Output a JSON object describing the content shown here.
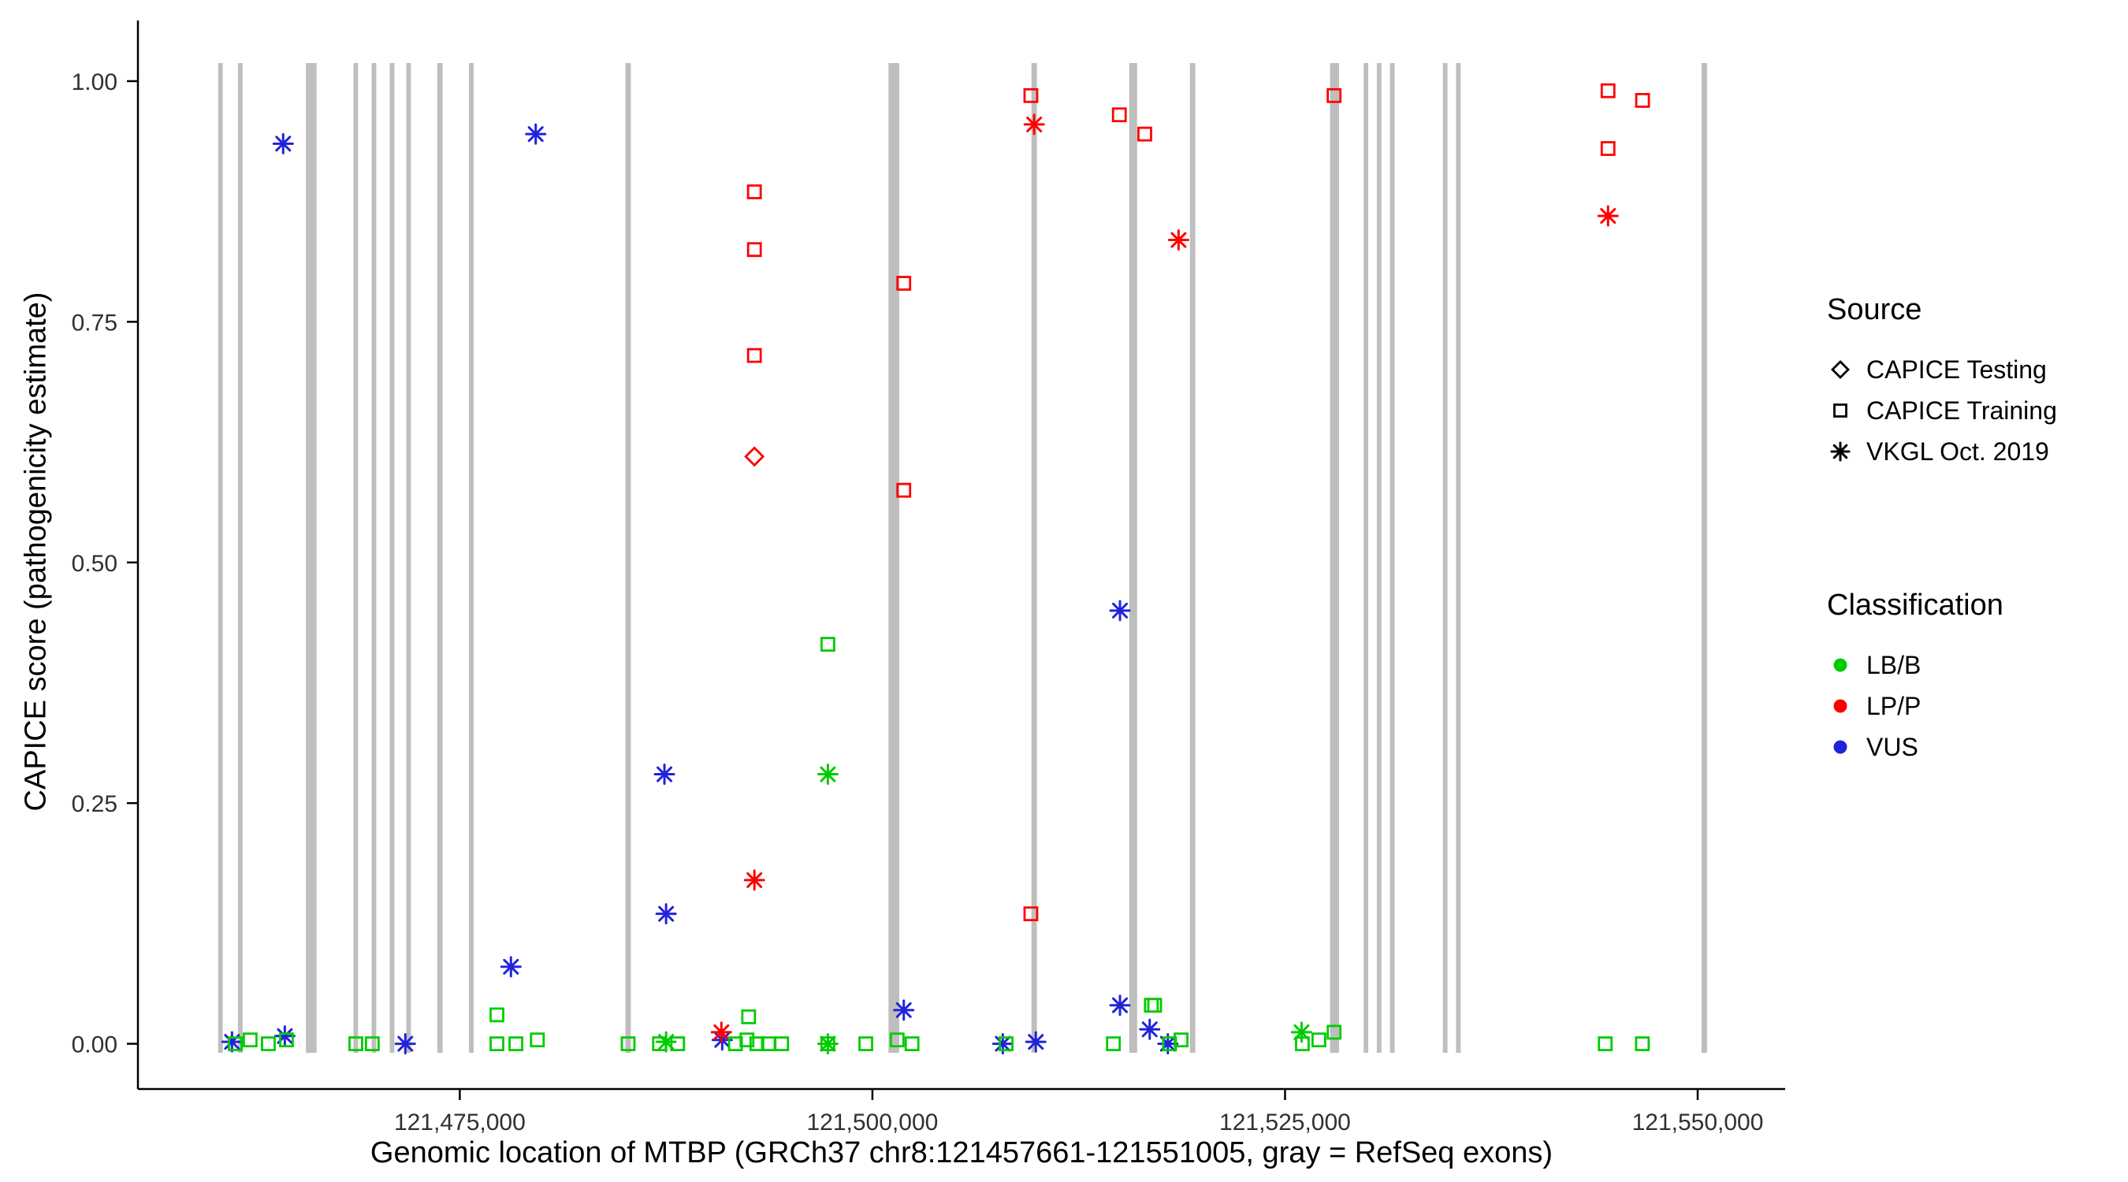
{
  "legend": {
    "source": {
      "title": "Source",
      "items": [
        {
          "label": "CAPICE Testing",
          "shape": "diamond"
        },
        {
          "label": "CAPICE Training",
          "shape": "square"
        },
        {
          "label": "VKGL Oct. 2019",
          "shape": "asterisk"
        }
      ]
    },
    "classification": {
      "title": "Classification",
      "items": [
        {
          "label": "LB/B",
          "color": "#00CC00"
        },
        {
          "label": "LP/P",
          "color": "#FF0000"
        },
        {
          "label": "VUS",
          "color": "#2222DD"
        }
      ]
    }
  },
  "chart_data": {
    "type": "scatter",
    "title": "",
    "xlabel": "Genomic location of MTBP (GRCh37 chr8:121457661-121551005, gray = RefSeq exons)",
    "ylabel": "CAPICE score (pathogenicity estimate)",
    "x_range": [
      121455500,
      121555300
    ],
    "y_range": [
      -0.047,
      1.063
    ],
    "x_ticks": [
      {
        "value": 121475000,
        "label": "121,475,000"
      },
      {
        "value": 121500000,
        "label": "121,500,000"
      },
      {
        "value": 121525000,
        "label": "121,525,000"
      },
      {
        "value": 121550000,
        "label": "121,550,000"
      }
    ],
    "y_ticks": [
      {
        "value": 0.0,
        "label": "0.00"
      },
      {
        "value": 0.25,
        "label": "0.25"
      },
      {
        "value": 0.5,
        "label": "0.50"
      },
      {
        "value": 0.75,
        "label": "0.75"
      },
      {
        "value": 1.0,
        "label": "1.00"
      }
    ],
    "colors": {
      "LB/B": "#00CC00",
      "LP/P": "#FF0000",
      "VUS": "#2222DD",
      "exon": "#BEBEBE",
      "axis": "#000000"
    },
    "shapes": {
      "CAPICE Testing": "diamond",
      "CAPICE Training": "square",
      "VKGL Oct. 2019": "asterisk"
    },
    "exons": [
      [
        121460500,
        280
      ],
      [
        121461700,
        280
      ],
      [
        121466000,
        650
      ],
      [
        121468700,
        280
      ],
      [
        121469800,
        280
      ],
      [
        121470900,
        280
      ],
      [
        121471900,
        280
      ],
      [
        121473800,
        330
      ],
      [
        121475700,
        280
      ],
      [
        121485200,
        330
      ],
      [
        121501300,
        650
      ],
      [
        121509800,
        330
      ],
      [
        121515800,
        480
      ],
      [
        121519400,
        330
      ],
      [
        121528000,
        550
      ],
      [
        121529900,
        280
      ],
      [
        121530700,
        280
      ],
      [
        121531500,
        280
      ],
      [
        121534700,
        280
      ],
      [
        121535500,
        280
      ],
      [
        121550400,
        330
      ]
    ],
    "points_format": [
      "genomic_position",
      "capice_score",
      "source",
      "classification"
    ],
    "points": [
      [
        121464300,
        0.935,
        "VKGL Oct. 2019",
        "VUS"
      ],
      [
        121479600,
        0.945,
        "VKGL Oct. 2019",
        "VUS"
      ],
      [
        121487400,
        0.28,
        "VKGL Oct. 2019",
        "VUS"
      ],
      [
        121487500,
        0.135,
        "VKGL Oct. 2019",
        "VUS"
      ],
      [
        121478100,
        0.08,
        "VKGL Oct. 2019",
        "VUS"
      ],
      [
        121515000,
        0.45,
        "VKGL Oct. 2019",
        "VUS"
      ],
      [
        121501900,
        0.035,
        "VKGL Oct. 2019",
        "VUS"
      ],
      [
        121515000,
        0.04,
        "VKGL Oct. 2019",
        "VUS"
      ],
      [
        121516800,
        0.015,
        "VKGL Oct. 2019",
        "VUS"
      ],
      [
        121461200,
        0.002,
        "VKGL Oct. 2019",
        "VUS"
      ],
      [
        121464400,
        0.008,
        "VKGL Oct. 2019",
        "VUS"
      ],
      [
        121471700,
        0.0,
        "VKGL Oct. 2019",
        "VUS"
      ],
      [
        121490900,
        0.004,
        "VKGL Oct. 2019",
        "VUS"
      ],
      [
        121507900,
        0.0,
        "VKGL Oct. 2019",
        "VUS"
      ],
      [
        121509900,
        0.002,
        "VKGL Oct. 2019",
        "VUS"
      ],
      [
        121517900,
        0.0,
        "VKGL Oct. 2019",
        "VUS"
      ],
      [
        121492850,
        0.885,
        "CAPICE Training",
        "LP/P"
      ],
      [
        121492850,
        0.825,
        "CAPICE Training",
        "LP/P"
      ],
      [
        121492850,
        0.715,
        "CAPICE Training",
        "LP/P"
      ],
      [
        121501900,
        0.79,
        "CAPICE Training",
        "LP/P"
      ],
      [
        121501900,
        0.575,
        "CAPICE Training",
        "LP/P"
      ],
      [
        121509600,
        0.985,
        "CAPICE Training",
        "LP/P"
      ],
      [
        121514960,
        0.965,
        "CAPICE Training",
        "LP/P"
      ],
      [
        121516500,
        0.945,
        "CAPICE Training",
        "LP/P"
      ],
      [
        121527970,
        0.985,
        "CAPICE Training",
        "LP/P"
      ],
      [
        121544570,
        0.99,
        "CAPICE Training",
        "LP/P"
      ],
      [
        121544570,
        0.93,
        "CAPICE Training",
        "LP/P"
      ],
      [
        121546660,
        0.98,
        "CAPICE Training",
        "LP/P"
      ],
      [
        121509600,
        0.135,
        "CAPICE Training",
        "LP/P"
      ],
      [
        121492850,
        0.61,
        "CAPICE Testing",
        "LP/P"
      ],
      [
        121509800,
        0.955,
        "VKGL Oct. 2019",
        "LP/P"
      ],
      [
        121518550,
        0.835,
        "VKGL Oct. 2019",
        "LP/P"
      ],
      [
        121544570,
        0.86,
        "VKGL Oct. 2019",
        "LP/P"
      ],
      [
        121492850,
        0.17,
        "VKGL Oct. 2019",
        "LP/P"
      ],
      [
        121490850,
        0.012,
        "VKGL Oct. 2019",
        "LP/P"
      ],
      [
        121497300,
        0.415,
        "CAPICE Training",
        "LB/B"
      ],
      [
        121477250,
        0.03,
        "CAPICE Training",
        "LB/B"
      ],
      [
        121516900,
        0.04,
        "CAPICE Training",
        "LB/B"
      ],
      [
        121492500,
        0.028,
        "CAPICE Training",
        "LB/B"
      ],
      [
        121461400,
        0.0,
        "CAPICE Training",
        "LB/B"
      ],
      [
        121462300,
        0.004,
        "CAPICE Training",
        "LB/B"
      ],
      [
        121463400,
        0.0,
        "CAPICE Training",
        "LB/B"
      ],
      [
        121464500,
        0.004,
        "CAPICE Training",
        "LB/B"
      ],
      [
        121468700,
        0.0,
        "CAPICE Training",
        "LB/B"
      ],
      [
        121469700,
        0.0,
        "CAPICE Training",
        "LB/B"
      ],
      [
        121477250,
        0.0,
        "CAPICE Training",
        "LB/B"
      ],
      [
        121478400,
        0.0,
        "CAPICE Training",
        "LB/B"
      ],
      [
        121479700,
        0.004,
        "CAPICE Training",
        "LB/B"
      ],
      [
        121485200,
        0.0,
        "CAPICE Training",
        "LB/B"
      ],
      [
        121487100,
        0.0,
        "CAPICE Training",
        "LB/B"
      ],
      [
        121488200,
        0.0,
        "CAPICE Training",
        "LB/B"
      ],
      [
        121491700,
        0.0,
        "CAPICE Training",
        "LB/B"
      ],
      [
        121492400,
        0.004,
        "CAPICE Training",
        "LB/B"
      ],
      [
        121493000,
        0.0,
        "CAPICE Training",
        "LB/B"
      ],
      [
        121493700,
        0.0,
        "CAPICE Training",
        "LB/B"
      ],
      [
        121494500,
        0.0,
        "CAPICE Training",
        "LB/B"
      ],
      [
        121497300,
        0.0,
        "CAPICE Training",
        "LB/B"
      ],
      [
        121499600,
        0.0,
        "CAPICE Training",
        "LB/B"
      ],
      [
        121501500,
        0.004,
        "CAPICE Training",
        "LB/B"
      ],
      [
        121502400,
        0.0,
        "CAPICE Training",
        "LB/B"
      ],
      [
        121508100,
        0.0,
        "CAPICE Training",
        "LB/B"
      ],
      [
        121514600,
        0.0,
        "CAPICE Training",
        "LB/B"
      ],
      [
        121517100,
        0.04,
        "CAPICE Training",
        "LB/B"
      ],
      [
        121518000,
        0.0,
        "CAPICE Training",
        "LB/B"
      ],
      [
        121518700,
        0.004,
        "CAPICE Training",
        "LB/B"
      ],
      [
        121526050,
        0.0,
        "CAPICE Training",
        "LB/B"
      ],
      [
        121527050,
        0.004,
        "CAPICE Training",
        "LB/B"
      ],
      [
        121527970,
        0.012,
        "CAPICE Training",
        "LB/B"
      ],
      [
        121544400,
        0.0,
        "CAPICE Training",
        "LB/B"
      ],
      [
        121546650,
        0.0,
        "CAPICE Training",
        "LB/B"
      ],
      [
        121497300,
        0.28,
        "VKGL Oct. 2019",
        "LB/B"
      ],
      [
        121487500,
        0.002,
        "VKGL Oct. 2019",
        "LB/B"
      ],
      [
        121497300,
        0.0,
        "VKGL Oct. 2019",
        "LB/B"
      ],
      [
        121526000,
        0.012,
        "VKGL Oct. 2019",
        "LB/B"
      ]
    ]
  }
}
